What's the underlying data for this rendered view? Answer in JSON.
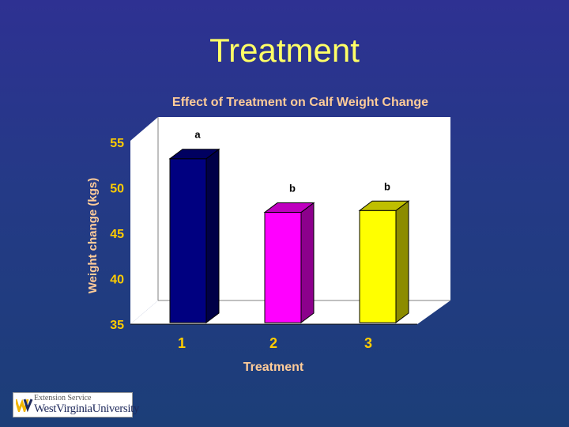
{
  "slide": {
    "title": "Treatment"
  },
  "colors": {
    "background": "#2e3192",
    "slide_title": "#ffff66",
    "chart_text": "#ffcc99",
    "axis_text": "#ffcc00",
    "plot_wall": "#ffffff"
  },
  "chart_data": {
    "type": "bar",
    "title": "Effect of Treatment on Calf Weight Change",
    "xlabel": "Treatment",
    "ylabel": "Weight change (kgs)",
    "categories": [
      "1",
      "2",
      "3"
    ],
    "values": [
      53.2,
      47.3,
      47.5
    ],
    "data_labels": [
      "a",
      "b",
      "b"
    ],
    "bar_colors": [
      "#000080",
      "#ff00ff",
      "#ffff00"
    ],
    "ylim": [
      35,
      55
    ],
    "yticks": [
      "35",
      "40",
      "45",
      "50",
      "55"
    ],
    "style": "3d-column",
    "grid": false,
    "legend": "none"
  },
  "logo": {
    "line1": "Extension Service",
    "line2": "WestVirginiaUniversity",
    "mark": "wv-logo-icon"
  }
}
